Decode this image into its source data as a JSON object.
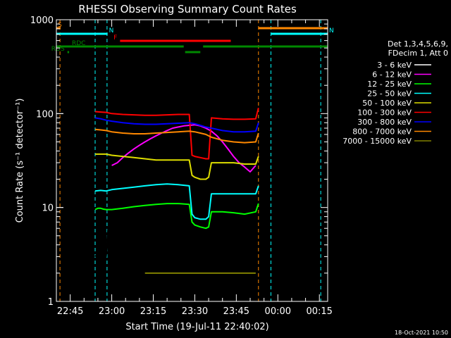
{
  "chart_data": {
    "type": "line",
    "title": "RHESSI Observing Summary Count Rates",
    "xlabel": "Start Time (19-Jul-11 22:40:02)",
    "ylabel": "Count Rate (s⁻¹ detector⁻¹)",
    "ylim": [
      1,
      1000
    ],
    "yscale": "log",
    "xlim_minutes": [
      0,
      98
    ],
    "x_ticks": [
      {
        "label": "22:45",
        "t": 5
      },
      {
        "label": "23:00",
        "t": 20
      },
      {
        "label": "23:15",
        "t": 35
      },
      {
        "label": "23:30",
        "t": 50
      },
      {
        "label": "23:45",
        "t": 65
      },
      {
        "label": "00:00",
        "t": 80
      },
      {
        "label": "00:15",
        "t": 95
      }
    ],
    "y_ticks": [
      {
        "label": "1",
        "v": 1
      },
      {
        "label": "10",
        "v": 10
      },
      {
        "label": "100",
        "v": 100
      },
      {
        "label": "1000",
        "v": 1000
      }
    ],
    "legend_header": [
      "Det 1,3,4,5,6,9,",
      "FDecim 1, Att 0"
    ],
    "series": [
      {
        "name": "3 - 6 keV",
        "color": "#000000",
        "x": [
          14,
          15,
          16,
          17,
          18,
          20,
          22,
          24,
          26,
          28,
          30,
          32,
          34,
          36,
          38,
          40,
          42,
          44,
          46,
          48,
          49,
          50,
          52,
          54,
          56,
          58,
          60,
          62,
          64,
          66,
          68,
          70,
          72
        ],
        "y": [
          3,
          3.3,
          3.5,
          3.2,
          3,
          25,
          28,
          32,
          36,
          40,
          44,
          48,
          52,
          56,
          60,
          64,
          68,
          72,
          75,
          80,
          80,
          78,
          70,
          65,
          62,
          58,
          52,
          46,
          40,
          35,
          30,
          27,
          30
        ]
      },
      {
        "name": "6 - 12 keV",
        "color": "#ff00ff",
        "x": [
          20,
          22,
          24,
          26,
          28,
          30,
          32,
          34,
          36,
          38,
          40,
          42,
          44,
          46,
          48,
          50,
          52,
          54,
          56,
          58,
          60,
          62,
          64,
          66,
          68,
          70,
          72
        ],
        "y": [
          28,
          30,
          34,
          38,
          42,
          46,
          50,
          54,
          58,
          62,
          66,
          70,
          72,
          74,
          75,
          76,
          74,
          70,
          65,
          58,
          50,
          42,
          35,
          30,
          27,
          24,
          28
        ]
      },
      {
        "name": "12 - 25 keV",
        "color": "#00ff00",
        "x": [
          14,
          15,
          16,
          17,
          18,
          20,
          24,
          28,
          32,
          36,
          40,
          44,
          48,
          49,
          50,
          52,
          54,
          55,
          56,
          58,
          60,
          64,
          68,
          72,
          73
        ],
        "y": [
          9.5,
          9.8,
          9.8,
          9.6,
          9.5,
          9.5,
          9.8,
          10.2,
          10.5,
          10.8,
          11,
          11,
          10.8,
          7,
          6.5,
          6.2,
          6,
          6.2,
          9,
          9,
          9,
          8.8,
          8.5,
          9,
          11
        ]
      },
      {
        "name": "25 - 50 keV",
        "color": "#00ffff",
        "x": [
          14,
          16,
          18,
          20,
          24,
          28,
          32,
          36,
          40,
          44,
          48,
          49,
          50,
          52,
          54,
          55,
          56,
          60,
          64,
          68,
          72,
          73
        ],
        "y": [
          15,
          15.2,
          15,
          15.5,
          16,
          16.5,
          17,
          17.5,
          17.8,
          17.5,
          17,
          8.5,
          7.8,
          7.5,
          7.5,
          8,
          14,
          14,
          14,
          14,
          14,
          17
        ]
      },
      {
        "name": "50 - 100 keV",
        "color": "#dddd00",
        "x": [
          14,
          16,
          18,
          20,
          24,
          28,
          32,
          36,
          40,
          44,
          48,
          49,
          50,
          52,
          54,
          55,
          56,
          60,
          64,
          68,
          72,
          73
        ],
        "y": [
          37,
          37,
          37,
          36,
          35,
          34,
          33,
          32,
          32,
          32,
          32,
          22,
          21,
          20,
          20,
          21,
          30,
          30,
          30,
          29,
          29,
          35
        ]
      },
      {
        "name": "100 - 300 keV",
        "color": "#ff0000",
        "x": [
          14,
          16,
          18,
          20,
          24,
          28,
          32,
          36,
          40,
          44,
          48,
          49,
          50,
          52,
          54,
          55,
          56,
          60,
          64,
          68,
          72,
          73
        ],
        "y": [
          105,
          104,
          103,
          100,
          98,
          97,
          96,
          96,
          97,
          98,
          98,
          36,
          35,
          34,
          33,
          33,
          90,
          88,
          87,
          87,
          88,
          115
        ]
      },
      {
        "name": "300 - 800 keV",
        "color": "#0000ff",
        "x": [
          14,
          16,
          18,
          20,
          24,
          28,
          32,
          36,
          40,
          44,
          48,
          50,
          52,
          54,
          56,
          60,
          64,
          68,
          72,
          73
        ],
        "y": [
          90,
          88,
          85,
          83,
          80,
          78,
          77,
          77,
          78,
          79,
          80,
          78,
          75,
          72,
          70,
          66,
          64,
          64,
          65,
          80
        ]
      },
      {
        "name": "800 - 7000 keV",
        "color": "#ff8800",
        "x": [
          14,
          16,
          18,
          20,
          24,
          28,
          32,
          36,
          40,
          44,
          48,
          50,
          52,
          54,
          56,
          60,
          64,
          68,
          72,
          73
        ],
        "y": [
          68,
          67,
          66,
          64,
          62,
          61,
          61,
          62,
          63,
          64,
          65,
          64,
          62,
          60,
          56,
          52,
          50,
          49,
          50,
          62
        ]
      },
      {
        "name": "7000 - 15000 keV",
        "color": "#808000",
        "x": [
          32,
          34,
          36,
          38,
          40,
          42,
          44,
          46,
          48,
          50,
          52,
          54,
          56,
          58,
          60,
          62,
          64,
          66,
          68,
          70,
          72
        ],
        "y": [
          2,
          2,
          2,
          2,
          2,
          2,
          2,
          2,
          2,
          2,
          2,
          2,
          2,
          2,
          2,
          2,
          2,
          2,
          2,
          2,
          2
        ]
      }
    ],
    "flags": [
      {
        "label": "S",
        "color": "#ff8800",
        "t_start": 0,
        "t_end": 1.5,
        "level": 0
      },
      {
        "label": "N",
        "color": "#00ffff",
        "t_start": 0,
        "t_end": 18.5,
        "level": 1
      },
      {
        "label": "N",
        "color": "#00ffff",
        "t_start": 77.5,
        "t_end": 98,
        "level": 1
      },
      {
        "label": "F",
        "color": "#ff0000",
        "t_start": 23,
        "t_end": 63,
        "level": 2
      },
      {
        "label": "",
        "color": "#ff8800",
        "t_start": 73,
        "t_end": 98,
        "level": 0
      },
      {
        "label": "RDC",
        "color": "#008800",
        "t_start": 0,
        "t_end": 46,
        "level": 3
      },
      {
        "label": "",
        "color": "#008800",
        "t_start": 53,
        "t_end": 98,
        "level": 3
      },
      {
        "label": "",
        "color": "#008800",
        "t_start": 46.5,
        "t_end": 52,
        "level": 4
      },
      {
        "label": "RDS",
        "color": "#008800",
        "t_start": 4,
        "t_end": 4.6,
        "level": 4
      }
    ],
    "vlines": [
      {
        "t": 1.3,
        "color": "#ff8800"
      },
      {
        "t": 14.0,
        "color": "#00ffff"
      },
      {
        "t": 18.3,
        "color": "#00ffff"
      },
      {
        "t": 73.0,
        "color": "#ff8800"
      },
      {
        "t": 77.5,
        "color": "#00ffff"
      },
      {
        "t": 95.5,
        "color": "#00ffff"
      }
    ],
    "footer_date": "18-Oct-2021 10:50"
  }
}
